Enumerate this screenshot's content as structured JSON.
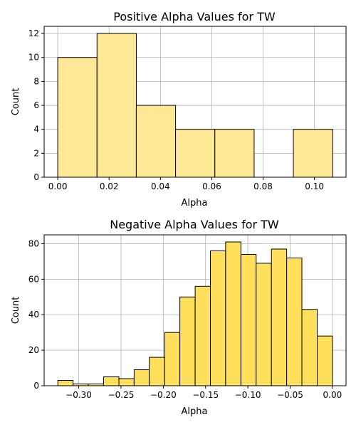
{
  "chart_data": [
    {
      "type": "bar",
      "title": "Positive Alpha Values for TW",
      "xlabel": "Alpha",
      "ylabel": "Count",
      "xlim": [
        -0.0053,
        0.1123
      ],
      "ylim": [
        0,
        12.6
      ],
      "xticks": [
        0.0,
        0.02,
        0.04,
        0.06,
        0.08,
        0.1
      ],
      "xtick_labels": [
        "0.00",
        "0.02",
        "0.04",
        "0.06",
        "0.08",
        "0.10"
      ],
      "yticks": [
        0,
        2,
        4,
        6,
        8,
        10,
        12
      ],
      "ytick_labels": [
        "0",
        "2",
        "4",
        "6",
        "8",
        "10",
        "12"
      ],
      "bins": [
        {
          "x0": 0.0,
          "x1": 0.0153,
          "value": 10
        },
        {
          "x0": 0.0153,
          "x1": 0.0306,
          "value": 12
        },
        {
          "x0": 0.0306,
          "x1": 0.0459,
          "value": 6
        },
        {
          "x0": 0.0459,
          "x1": 0.0612,
          "value": 4
        },
        {
          "x0": 0.0612,
          "x1": 0.0765,
          "value": 4
        },
        {
          "x0": 0.0765,
          "x1": 0.0918,
          "value": 0
        },
        {
          "x0": 0.0918,
          "x1": 0.1071,
          "value": 4
        }
      ],
      "bar_color": "#ffe896",
      "edge_color": "#000000",
      "grid": true
    },
    {
      "type": "bar",
      "title": "Negative Alpha Values for TW",
      "xlabel": "Alpha",
      "ylabel": "Count",
      "xlim": [
        -0.3409,
        0.0161
      ],
      "ylim": [
        0,
        85
      ],
      "xticks": [
        -0.3,
        -0.25,
        -0.2,
        -0.15,
        -0.1,
        -0.05,
        0.0
      ],
      "xtick_labels": [
        "−0.30",
        "−0.25",
        "−0.20",
        "−0.15",
        "−0.10",
        "−0.05",
        "0.00"
      ],
      "yticks": [
        0,
        20,
        40,
        60,
        80
      ],
      "ytick_labels": [
        "0",
        "20",
        "40",
        "60",
        "80"
      ],
      "bins": [
        {
          "x0": -0.3247,
          "x1": -0.3067,
          "value": 3
        },
        {
          "x0": -0.3067,
          "x1": -0.2886,
          "value": 1
        },
        {
          "x0": -0.2886,
          "x1": -0.2706,
          "value": 1
        },
        {
          "x0": -0.2706,
          "x1": -0.2525,
          "value": 5
        },
        {
          "x0": -0.2525,
          "x1": -0.2345,
          "value": 4
        },
        {
          "x0": -0.2345,
          "x1": -0.2165,
          "value": 9
        },
        {
          "x0": -0.2165,
          "x1": -0.1984,
          "value": 16
        },
        {
          "x0": -0.1984,
          "x1": -0.1804,
          "value": 30
        },
        {
          "x0": -0.1804,
          "x1": -0.1623,
          "value": 50
        },
        {
          "x0": -0.1623,
          "x1": -0.1443,
          "value": 56
        },
        {
          "x0": -0.1443,
          "x1": -0.1263,
          "value": 76
        },
        {
          "x0": -0.1263,
          "x1": -0.1082,
          "value": 81
        },
        {
          "x0": -0.1082,
          "x1": -0.0902,
          "value": 74
        },
        {
          "x0": -0.0902,
          "x1": -0.0721,
          "value": 69
        },
        {
          "x0": -0.0721,
          "x1": -0.0541,
          "value": 77
        },
        {
          "x0": -0.0541,
          "x1": -0.0361,
          "value": 72
        },
        {
          "x0": -0.0361,
          "x1": -0.018,
          "value": 43
        },
        {
          "x0": -0.018,
          "x1": 0.0,
          "value": 28
        }
      ],
      "bar_color": "#ffe05c",
      "edge_color": "#000000",
      "grid": true
    }
  ]
}
